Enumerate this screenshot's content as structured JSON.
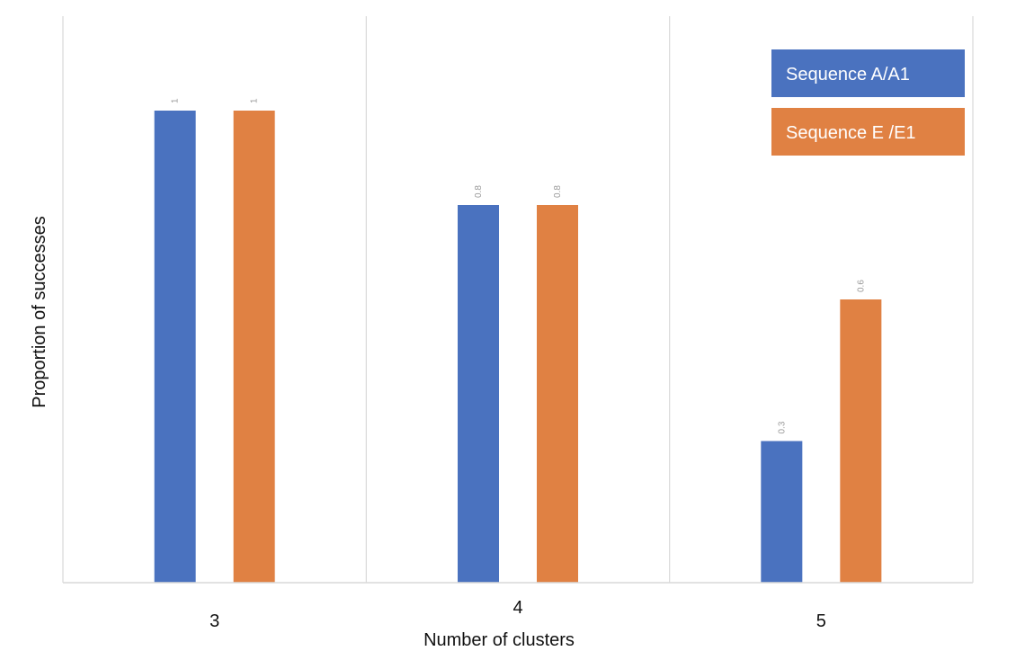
{
  "chart_data": {
    "type": "bar",
    "title": "",
    "xlabel": "Number of clusters",
    "ylabel": "Proportion of successes",
    "categories": [
      "3",
      "4",
      "5"
    ],
    "series": [
      {
        "name": "Sequence A/A1",
        "values": [
          1,
          0.8,
          0.3
        ],
        "labels": [
          "1",
          "0.8",
          "0.3"
        ],
        "color": "#4a72bf"
      },
      {
        "name": "Sequence E /E1",
        "values": [
          1,
          0.8,
          0.6
        ],
        "labels": [
          "1",
          "0.8",
          "0.6"
        ],
        "color": "#e08143"
      }
    ],
    "ylim": [
      0,
      1.2
    ],
    "grid": false,
    "category_separators": true,
    "legend_position": "top-right",
    "colors": {
      "axis": "#d9d9d9",
      "separator": "#d9d9d9"
    }
  }
}
